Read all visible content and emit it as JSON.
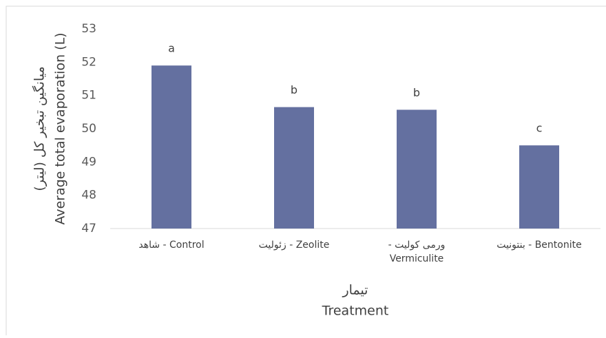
{
  "chart_data": {
    "type": "bar",
    "categories": [
      "Control - شاهد",
      "Zeolite - زئولیت",
      "ورمی کولیت - Vermiculite",
      "Bentonite - بنتونیت"
    ],
    "values": [
      51.9,
      50.65,
      50.57,
      49.5
    ],
    "annotations": [
      "a",
      "b",
      "b",
      "c"
    ],
    "color": "#6470a0",
    "ylim": [
      47,
      53
    ],
    "yticks": [
      47,
      48,
      49,
      50,
      51,
      52,
      53
    ],
    "grid": false,
    "ylabel": [
      "میانگین تبخیر کل (لیتر)",
      "Average total evaporation (L)"
    ],
    "xlabel": [
      "تیمار",
      "Treatment"
    ]
  }
}
